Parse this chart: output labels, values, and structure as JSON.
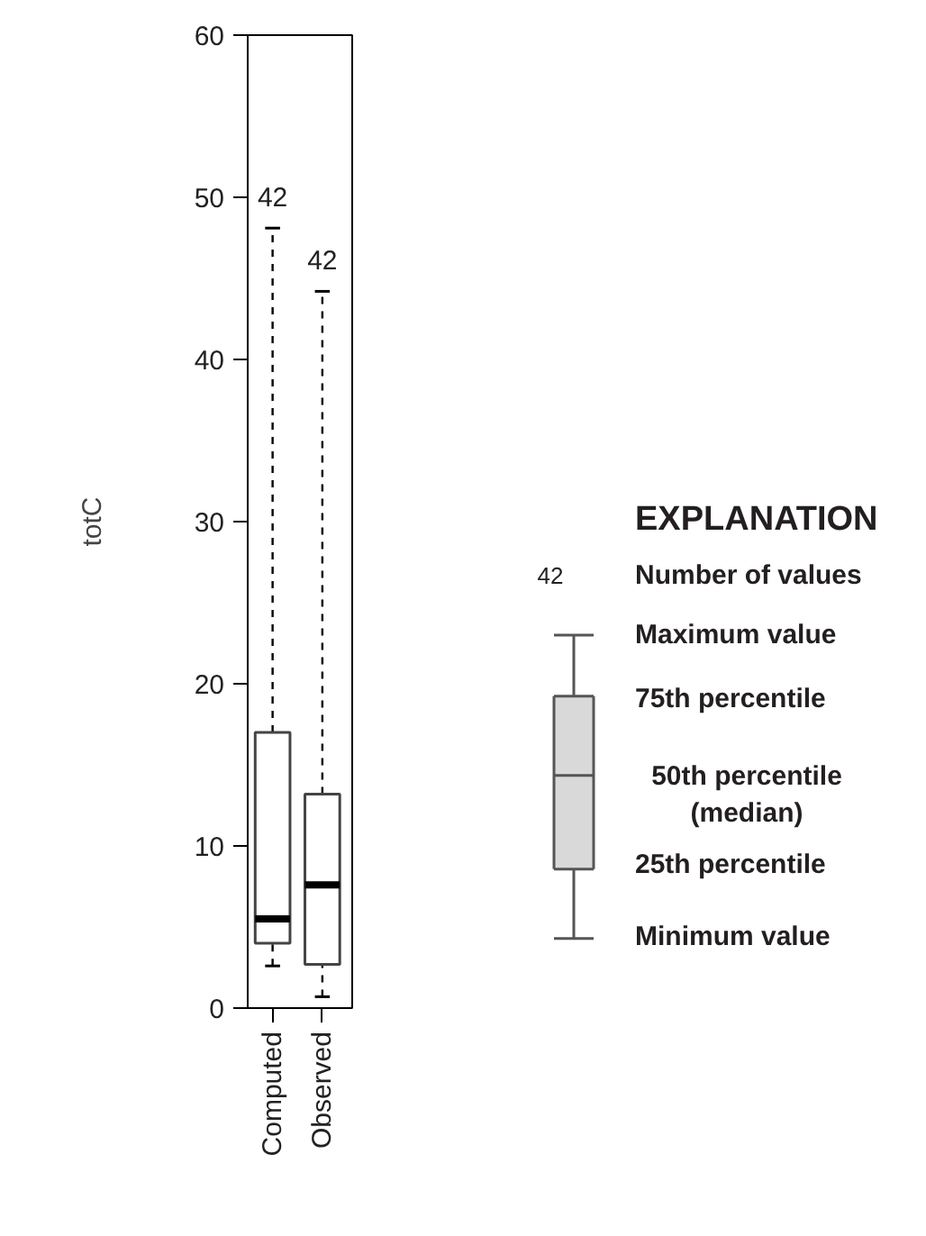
{
  "chart_data": [
    {
      "type": "box",
      "ylabel": "totC",
      "categories": [
        "Computed",
        "Observed"
      ],
      "ylim": [
        0,
        60
      ],
      "yticks": [
        0,
        10,
        20,
        30,
        40,
        50,
        60
      ],
      "grid": false,
      "color": "#ffffff",
      "boxes": [
        {
          "low": 2.6,
          "q1": 4.0,
          "median": 5.5,
          "q3": 17.0,
          "high": 48.1
        },
        {
          "low": 0.7,
          "q1": 2.7,
          "median": 7.6,
          "q3": 13.2,
          "high": 44.2
        }
      ],
      "annotations": [
        "42",
        "42"
      ]
    },
    {
      "type": "other",
      "title": "EXPLANATION",
      "annotations": [
        "42",
        "Number of values",
        "Maximum value",
        "75th percentile",
        "50th percentile\n(median)",
        "25th percentile",
        "Minimum value"
      ]
    }
  ]
}
